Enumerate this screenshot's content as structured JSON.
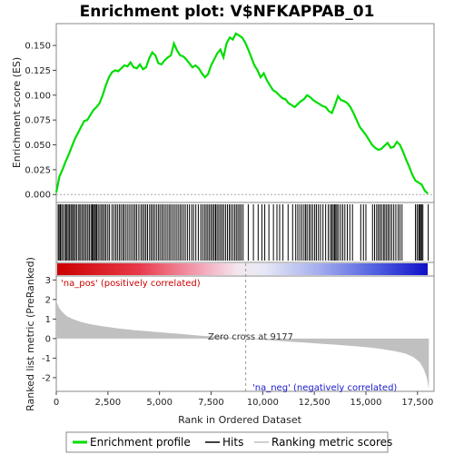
{
  "chart_data": [
    {
      "type": "line",
      "panel": "enrichment",
      "title": "Enrichment plot: V$NFKAPPAB_01",
      "ylabel": "Enrichment score (ES)",
      "ylim": [
        -0.008,
        0.172
      ],
      "xlim": [
        0,
        18300
      ],
      "y_ticks": [
        "0.000",
        "0.025",
        "0.050",
        "0.075",
        "0.100",
        "0.125",
        "0.150"
      ],
      "y_tick_values": [
        0.0,
        0.025,
        0.05,
        0.075,
        0.1,
        0.125,
        0.15
      ],
      "grid": false,
      "series": [
        {
          "name": "Enrichment profile",
          "color": "#00dd00",
          "x": [
            0,
            150,
            300,
            450,
            600,
            750,
            900,
            1050,
            1200,
            1350,
            1500,
            1650,
            1800,
            1950,
            2100,
            2250,
            2400,
            2550,
            2700,
            2850,
            3000,
            3150,
            3300,
            3450,
            3600,
            3750,
            3900,
            4050,
            4200,
            4350,
            4500,
            4650,
            4800,
            4950,
            5100,
            5250,
            5400,
            5550,
            5700,
            5850,
            6000,
            6150,
            6300,
            6450,
            6600,
            6750,
            6900,
            7050,
            7200,
            7350,
            7500,
            7650,
            7800,
            7950,
            8100,
            8250,
            8400,
            8550,
            8700,
            8850,
            9000,
            9150,
            9300,
            9450,
            9600,
            9750,
            9900,
            10050,
            10200,
            10350,
            10500,
            10650,
            10800,
            10950,
            11100,
            11250,
            11400,
            11550,
            11700,
            11850,
            12000,
            12150,
            12300,
            12450,
            12600,
            12750,
            12900,
            13050,
            13200,
            13350,
            13500,
            13650,
            13800,
            13950,
            14100,
            14250,
            14400,
            14550,
            14700,
            14850,
            15000,
            15150,
            15300,
            15450,
            15600,
            15750,
            15900,
            16050,
            16200,
            16350,
            16500,
            16650,
            16800,
            16950,
            17100,
            17250,
            17400,
            17550,
            17700,
            17850,
            18000
          ],
          "values": [
            0.002,
            0.018,
            0.025,
            0.033,
            0.04,
            0.048,
            0.056,
            0.062,
            0.068,
            0.074,
            0.075,
            0.08,
            0.085,
            0.088,
            0.092,
            0.1,
            0.11,
            0.118,
            0.123,
            0.125,
            0.124,
            0.127,
            0.13,
            0.129,
            0.133,
            0.128,
            0.127,
            0.131,
            0.126,
            0.128,
            0.137,
            0.143,
            0.14,
            0.132,
            0.131,
            0.135,
            0.138,
            0.14,
            0.152,
            0.145,
            0.14,
            0.139,
            0.136,
            0.132,
            0.128,
            0.13,
            0.127,
            0.122,
            0.118,
            0.121,
            0.13,
            0.136,
            0.142,
            0.146,
            0.138,
            0.152,
            0.158,
            0.156,
            0.162,
            0.16,
            0.158,
            0.153,
            0.146,
            0.138,
            0.13,
            0.125,
            0.118,
            0.122,
            0.115,
            0.11,
            0.105,
            0.103,
            0.1,
            0.097,
            0.096,
            0.092,
            0.09,
            0.088,
            0.091,
            0.094,
            0.096,
            0.1,
            0.098,
            0.095,
            0.093,
            0.091,
            0.089,
            0.088,
            0.084,
            0.082,
            0.09,
            0.099,
            0.095,
            0.094,
            0.092,
            0.088,
            0.082,
            0.075,
            0.068,
            0.064,
            0.06,
            0.055,
            0.05,
            0.047,
            0.045,
            0.046,
            0.049,
            0.052,
            0.047,
            0.048,
            0.053,
            0.05,
            0.043,
            0.035,
            0.028,
            0.02,
            0.014,
            0.012,
            0.01,
            0.004,
            0.001
          ]
        }
      ]
    },
    {
      "type": "scatter",
      "panel": "hits",
      "series": [
        {
          "name": "Hits",
          "color": "#000000",
          "x": [
            90,
            140,
            200,
            260,
            330,
            420,
            480,
            530,
            610,
            660,
            740,
            790,
            860,
            930,
            1000,
            1090,
            1150,
            1230,
            1300,
            1380,
            1450,
            1530,
            1600,
            1680,
            1740,
            1790,
            1850,
            1900,
            1960,
            2030,
            2110,
            2190,
            2260,
            2340,
            2410,
            2500,
            2580,
            2700,
            2790,
            2880,
            2960,
            3050,
            3130,
            3220,
            3290,
            3380,
            3470,
            3560,
            3650,
            3740,
            3820,
            3900,
            4000,
            4100,
            4180,
            4260,
            4340,
            4420,
            4520,
            4600,
            4680,
            4760,
            4850,
            4940,
            5020,
            5110,
            5190,
            5280,
            5370,
            5460,
            5540,
            5630,
            5720,
            5810,
            5900,
            5990,
            6070,
            6160,
            6250,
            6350,
            6450,
            6560,
            6650,
            6760,
            6880,
            7000,
            7090,
            7180,
            7260,
            7340,
            7420,
            7500,
            7580,
            7650,
            7720,
            7790,
            7870,
            7950,
            8030,
            8110,
            8200,
            8290,
            8380,
            8460,
            8550,
            8640,
            8720,
            8800,
            8880,
            8960,
            9050,
            9300,
            9550,
            9780,
            9960,
            10100,
            10300,
            10520,
            10690,
            10820,
            10980,
            11230,
            11450,
            11600,
            11700,
            11800,
            11900,
            12000,
            12080,
            12150,
            12250,
            12330,
            12420,
            12520,
            12600,
            12700,
            12800,
            12920,
            13050,
            13180,
            13280,
            13350,
            13420,
            13480,
            13540,
            13600,
            13680,
            13780,
            13880,
            13980,
            14100,
            14220,
            14350,
            14750,
            14880,
            15000,
            15320,
            15420,
            15520,
            15600,
            15680,
            15760,
            15850,
            15920,
            16000,
            16080,
            16160,
            16250,
            16350,
            16450,
            16560,
            16650,
            16750,
            17400,
            17480,
            17560,
            17600,
            17650,
            17700,
            17760,
            18020
          ]
        }
      ]
    },
    {
      "type": "area",
      "panel": "ranked-metric",
      "xlabel": "Rank in Ordered Dataset",
      "ylabel": "Ranked list metric (PreRanked)",
      "ylim": [
        -2.7,
        3.2
      ],
      "xlim": [
        0,
        18300
      ],
      "y_ticks": [
        "-2",
        "-1",
        "0",
        "1",
        "2",
        "3"
      ],
      "y_tick_values": [
        -2,
        -1,
        0,
        1,
        2,
        3
      ],
      "x_ticks": [
        "0",
        "2,500",
        "5,000",
        "7,500",
        "10,000",
        "12,500",
        "15,000",
        "17,500"
      ],
      "x_tick_values": [
        0,
        2500,
        5000,
        7500,
        10000,
        12500,
        15000,
        17500
      ],
      "annotations": [
        "'na_pos' (positively correlated)",
        "Zero cross at 9177",
        "'na_neg' (negatively correlated)"
      ],
      "zero_cross": 9177,
      "series": [
        {
          "name": "Ranking metric scores",
          "color": "#c0c0c0",
          "x": [
            0,
            50,
            150,
            300,
            500,
            800,
            1200,
            1700,
            2300,
            3000,
            3800,
            4600,
            5400,
            6200,
            7000,
            7800,
            8500,
            9177,
            9800,
            10500,
            11200,
            12000,
            12800,
            13600,
            14400,
            15200,
            15800,
            16400,
            16900,
            17300,
            17600,
            17800,
            17950,
            18000,
            18050
          ],
          "values": [
            2.0,
            1.8,
            1.55,
            1.35,
            1.15,
            1.0,
            0.85,
            0.73,
            0.62,
            0.52,
            0.43,
            0.36,
            0.29,
            0.22,
            0.15,
            0.09,
            0.04,
            0.0,
            -0.05,
            -0.1,
            -0.15,
            -0.2,
            -0.26,
            -0.32,
            -0.38,
            -0.46,
            -0.54,
            -0.64,
            -0.76,
            -0.95,
            -1.2,
            -1.55,
            -2.0,
            -2.3,
            -2.55
          ]
        }
      ]
    }
  ],
  "legend": {
    "items": [
      {
        "label": "Enrichment profile",
        "color": "#00dd00"
      },
      {
        "label": "Hits",
        "color": "#000000"
      },
      {
        "label": "Ranking metric scores",
        "color": "#c0c0c0"
      }
    ]
  }
}
